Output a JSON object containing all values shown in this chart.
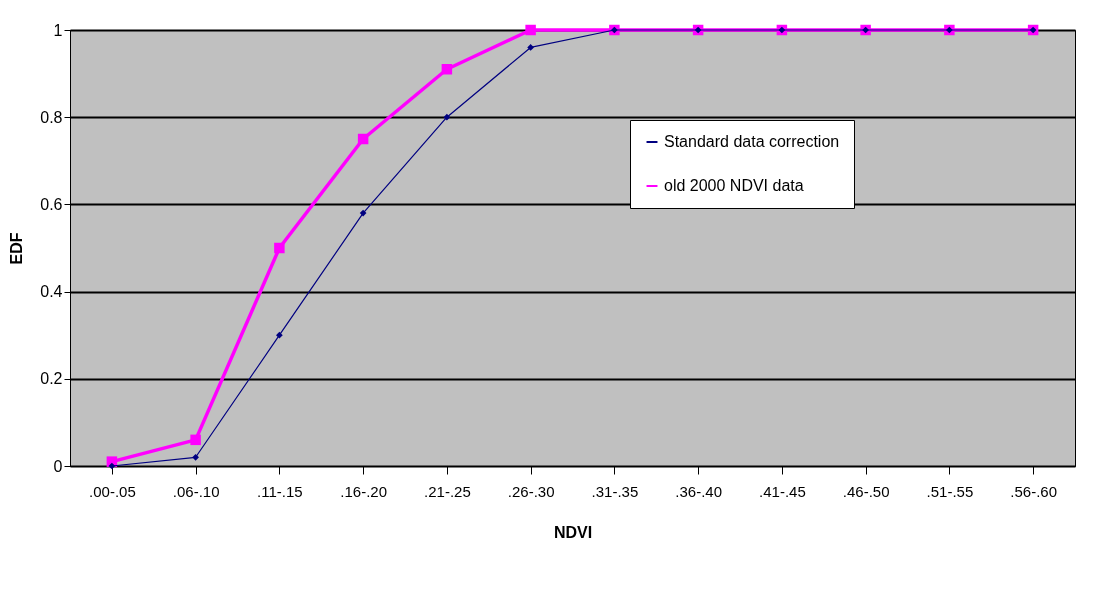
{
  "chart_data": {
    "type": "line",
    "xlabel": "NDVI",
    "ylabel": "EDF",
    "categories": [
      ".00-.05",
      ".06-.10",
      ".11-.15",
      ".16-.20",
      ".21-.25",
      ".26-.30",
      ".31-.35",
      ".36-.40",
      ".41-.45",
      ".46-.50",
      ".51-.55",
      ".56-.60"
    ],
    "series": [
      {
        "name": "Standard data correction",
        "color": "#000080",
        "marker": "diamond",
        "values": [
          0.0,
          0.02,
          0.3,
          0.58,
          0.8,
          0.96,
          1,
          1,
          1,
          1,
          1,
          1
        ]
      },
      {
        "name": "old 2000 NDVI data",
        "color": "#ff00ff",
        "marker": "square",
        "values": [
          0.01,
          0.06,
          0.5,
          0.75,
          0.91,
          1,
          1,
          1,
          1,
          1,
          1,
          1
        ]
      }
    ],
    "ylim": [
      0,
      1
    ],
    "yticks": [
      0,
      0.2,
      0.4,
      0.6,
      0.8,
      1
    ],
    "grid": "y",
    "legend": "right"
  }
}
